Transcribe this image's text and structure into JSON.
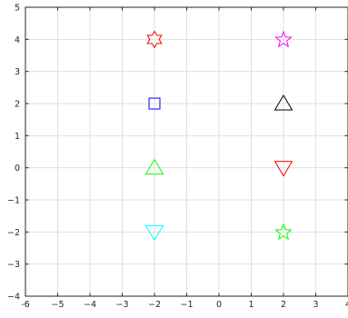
{
  "chart_data": {
    "type": "scatter",
    "title": "",
    "xlabel": "",
    "ylabel": "",
    "xlim": [
      -6,
      4
    ],
    "ylim": [
      -4,
      5
    ],
    "grid": true,
    "xticks": [
      -6,
      -5,
      -4,
      -3,
      -2,
      -1,
      0,
      1,
      2,
      3,
      4
    ],
    "yticks": [
      -4,
      -3,
      -2,
      -1,
      0,
      1,
      2,
      3,
      4,
      5
    ],
    "xtick_labels": [
      "-6",
      "−5",
      "−4",
      "−3",
      "−2",
      "−1",
      "0",
      "1",
      "2",
      "3",
      "4"
    ],
    "ytick_labels": [
      "−4",
      "−3",
      "−2",
      "−1",
      "0",
      "1",
      "2",
      "3",
      "4",
      "5"
    ],
    "points": [
      {
        "x": -2,
        "y": 4,
        "marker": "hexagram",
        "color": "#ff0000"
      },
      {
        "x": -2,
        "y": 2,
        "marker": "square",
        "color": "#0000ff"
      },
      {
        "x": -2,
        "y": 0,
        "marker": "triangle-up",
        "color": "#00ff00"
      },
      {
        "x": -2,
        "y": -2,
        "marker": "triangle-down",
        "color": "#00ffff"
      },
      {
        "x": 2,
        "y": 4,
        "marker": "pentagram",
        "color": "#ff00ff"
      },
      {
        "x": 2,
        "y": 2,
        "marker": "triangle-up",
        "color": "#000000"
      },
      {
        "x": 2,
        "y": 0,
        "marker": "triangle-down",
        "color": "#ff0000"
      },
      {
        "x": 2,
        "y": -2,
        "marker": "pentagram",
        "color": "#00ff00"
      }
    ]
  }
}
